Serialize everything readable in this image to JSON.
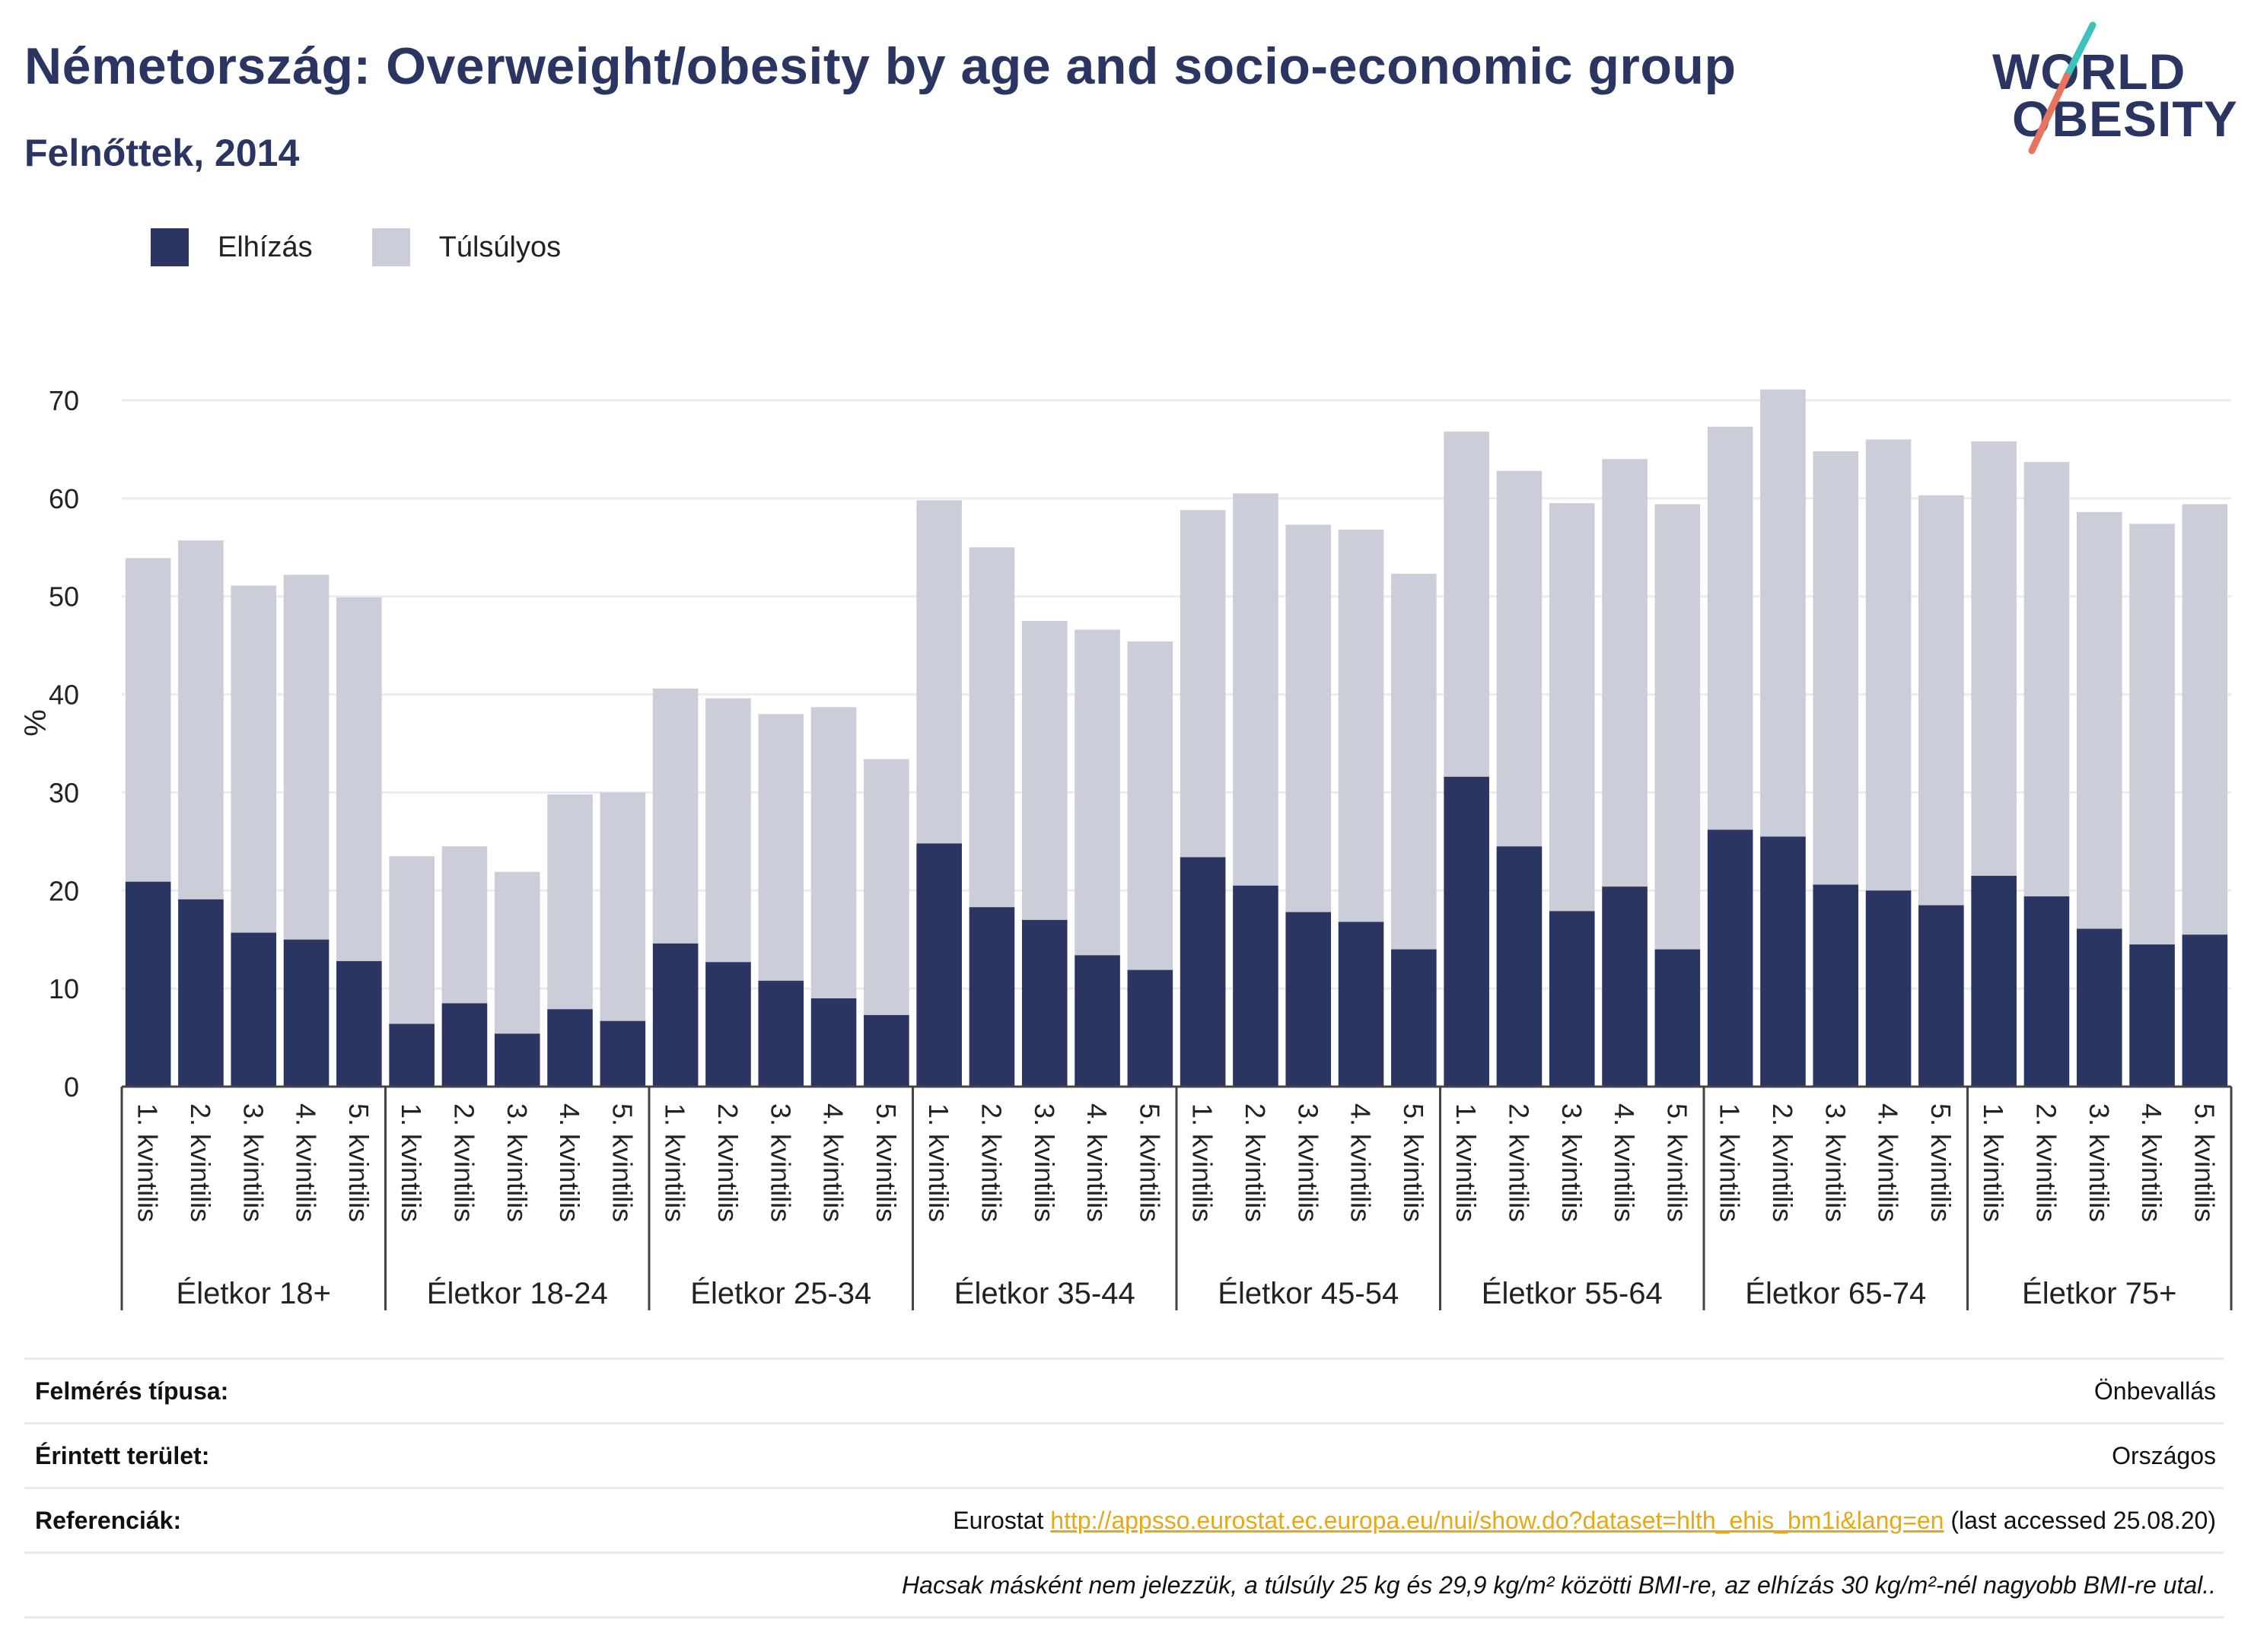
{
  "title": "Németország: Overweight/obesity by age and socio-economic group",
  "subtitle": "Felnőttek, 2014",
  "logo": {
    "line1": "WORLD",
    "line2": "OBESITY"
  },
  "legend": [
    {
      "label": "Elhízás",
      "color": "#2b3562"
    },
    {
      "label": "Túlsúlyos",
      "color": "#cbcdd8"
    }
  ],
  "info": {
    "survey_label": "Felmérés típusa:",
    "survey_value": "Önbevallás",
    "area_label": "Érintett terület:",
    "area_value": "Országos",
    "ref_label": "Referenciák:",
    "ref_prefix": "Eurostat ",
    "ref_link": "http://appsso.eurostat.ec.europa.eu/nui/show.do?dataset=hlth_ehis_bm1i&lang=en",
    "ref_suffix": " (last accessed 25.08.20)",
    "note": "Hacsak másként nem jelezzük, a túlsúly 25 kg és 29,9 kg/m² közötti BMI-re, az elhízás 30 kg/m²-nél nagyobb BMI-re utal.."
  },
  "chart_data": {
    "type": "bar",
    "stacked": true,
    "ylabel": "%",
    "ylim": [
      0,
      70
    ],
    "yticks": [
      0,
      10,
      20,
      30,
      40,
      50,
      60,
      70
    ],
    "grid": true,
    "legend_position": "top-left",
    "groups": [
      "Életkor 18+",
      "Életkor 18-24",
      "Életkor 25-34",
      "Életkor 35-44",
      "Életkor 45-54",
      "Életkor 55-64",
      "Életkor 65-74",
      "Életkor 75+"
    ],
    "quintiles": [
      "1. kvintilis",
      "2. kvintilis",
      "3. kvintilis",
      "4. kvintilis",
      "5. kvintilis"
    ],
    "series": [
      {
        "name": "Elhízás",
        "color": "#2b3562",
        "values": [
          [
            20.9,
            19.1,
            15.7,
            15.0,
            12.8
          ],
          [
            6.4,
            8.5,
            5.4,
            7.9,
            6.7
          ],
          [
            14.6,
            12.7,
            10.8,
            9.0,
            7.3
          ],
          [
            24.8,
            18.3,
            17.0,
            13.4,
            11.9
          ],
          [
            23.4,
            20.5,
            17.8,
            16.8,
            14.0
          ],
          [
            31.6,
            24.5,
            17.9,
            20.4,
            14.0
          ],
          [
            26.2,
            25.5,
            20.6,
            20.0,
            18.5
          ],
          [
            21.5,
            19.4,
            16.1,
            14.5,
            15.5
          ]
        ]
      },
      {
        "name": "Túlsúlyos",
        "color": "#cbcdd8",
        "values": [
          [
            33.0,
            36.6,
            35.4,
            37.2,
            37.1
          ],
          [
            17.1,
            16.0,
            16.5,
            21.9,
            23.3
          ],
          [
            26.0,
            26.9,
            27.2,
            29.7,
            26.1
          ],
          [
            35.0,
            36.7,
            30.5,
            33.2,
            33.5
          ],
          [
            35.4,
            40.0,
            39.5,
            40.0,
            38.3
          ],
          [
            35.2,
            38.3,
            41.6,
            43.6,
            45.4
          ],
          [
            41.1,
            45.6,
            44.2,
            46.0,
            41.8
          ],
          [
            44.3,
            44.3,
            42.5,
            42.9,
            43.9
          ]
        ]
      }
    ]
  }
}
